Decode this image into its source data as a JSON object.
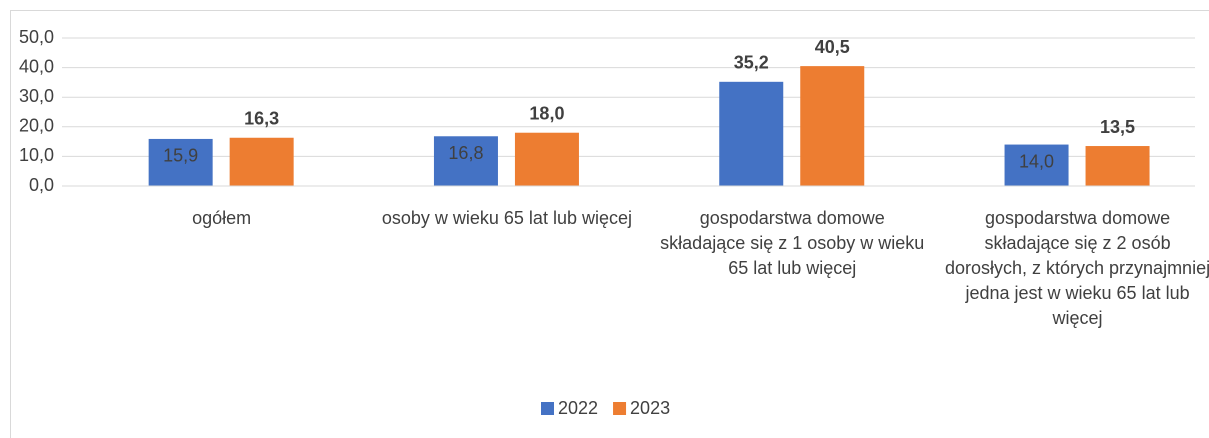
{
  "chart_data": {
    "type": "bar",
    "categories": [
      "ogółem",
      "osoby w wieku 65 lat lub więcej",
      "gospodarstwa domowe składające się z 1 osoby w wieku 65 lat lub więcej",
      "gospodarstwa domowe składające się z 2 osób dorosłych, z których przynajmniej jedna jest w wieku 65 lat lub więcej"
    ],
    "series": [
      {
        "name": "2022",
        "color": "#4472c4",
        "values": [
          15.9,
          16.8,
          35.2,
          14.0
        ],
        "value_labels": [
          "15,9",
          "16,8",
          "35,2",
          "14,0"
        ]
      },
      {
        "name": "2023",
        "color": "#ed7d31",
        "values": [
          16.3,
          18.0,
          40.5,
          13.5
        ],
        "value_labels": [
          "16,3",
          "18,0",
          "40,5",
          "13,5"
        ]
      }
    ],
    "ylim": [
      0,
      50
    ],
    "yticks": [
      {
        "value": 0,
        "label": "0,0"
      },
      {
        "value": 10,
        "label": "10,0"
      },
      {
        "value": 20,
        "label": "20,0"
      },
      {
        "value": 30,
        "label": "30,0"
      },
      {
        "value": 40,
        "label": "40,0"
      },
      {
        "value": 50,
        "label": "50,0"
      }
    ],
    "grid": true,
    "legend": "bottom"
  }
}
